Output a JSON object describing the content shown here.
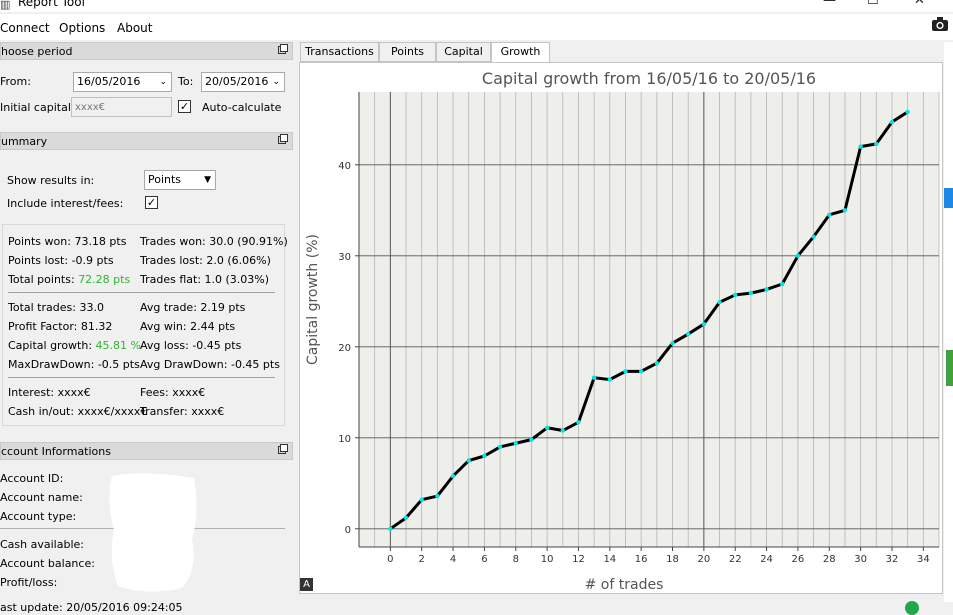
{
  "window": {
    "title": "Report Tool",
    "minimize_glyph": "—",
    "maximize_glyph": "☐",
    "close_glyph": "✕"
  },
  "menu": {
    "items": [
      "Connect",
      "Options",
      "About"
    ]
  },
  "period": {
    "header": "hoose period",
    "from_label": "From:",
    "from_value": "16/05/2016",
    "to_label": "To:",
    "to_value": "20/05/2016",
    "initial_capital_label": "Initial capital:",
    "initial_capital_placeholder": "xxxx€",
    "auto_calculate_label": "Auto-calculate",
    "auto_calculate_checked": true
  },
  "summary": {
    "header": "ummary",
    "show_results_label": "Show results in:",
    "show_results_value": "Points",
    "include_interest_label": "Include interest/fees:",
    "include_interest_checked": true,
    "left_stats": [
      {
        "label": "Points won: 73.18 pts",
        "value": ""
      },
      {
        "label": "Points lost: -0.9 pts",
        "value": ""
      },
      {
        "label": "Total points: ",
        "value": "72.28 pts"
      },
      {
        "label": "Total trades: 33.0",
        "value": ""
      },
      {
        "label": "Profit Factor: 81.32",
        "value": ""
      },
      {
        "label": "Capital growth: ",
        "value": "45.81 %"
      },
      {
        "label": "MaxDrawDown: -0.5 pts",
        "value": ""
      },
      {
        "label": "Interest: xxxx€",
        "value": ""
      },
      {
        "label": "Cash in/out: xxxx€/xxxx€",
        "value": ""
      }
    ],
    "right_stats": [
      "Trades won: 30.0 (90.91%)",
      "Trades lost: 2.0 (6.06%)",
      "Trades flat: 1.0 (3.03%)",
      "Avg trade: 2.19 pts",
      "Avg win: 2.44 pts",
      "Avg loss: -0.45 pts",
      "Avg DrawDown: -0.45 pts",
      "Fees: xxxx€",
      "Transfer: xxxx€"
    ]
  },
  "account": {
    "header": "ccount Informations",
    "labels": [
      "Account ID:",
      "Account name:",
      "Account type:",
      "Cash available:",
      "Account balance:",
      "Profit/loss:"
    ],
    "last_update": "ast update: 20/05/2016 09:24:05"
  },
  "tabs": [
    "Transactions",
    "Points",
    "Capital",
    "Growth"
  ],
  "active_tab": "Growth",
  "colors": {
    "positive": "#2fb52f",
    "line": "#000000",
    "marker": "#00e5e5",
    "plot_bg": "#eeeeea"
  },
  "chart_data": {
    "type": "line",
    "title": "Capital growth from 16/05/16 to 20/05/16",
    "xlabel": "# of trades",
    "ylabel": "Capital growth (%)",
    "xlim": [
      -2,
      35
    ],
    "ylim": [
      -2,
      48
    ],
    "xticks": [
      0,
      2,
      4,
      6,
      8,
      10,
      12,
      14,
      16,
      18,
      20,
      22,
      24,
      26,
      28,
      30,
      32,
      34
    ],
    "yticks": [
      0,
      10,
      20,
      30,
      40
    ],
    "grid": true,
    "x": [
      0,
      1,
      2,
      3,
      4,
      5,
      6,
      7,
      8,
      9,
      10,
      11,
      12,
      13,
      14,
      15,
      16,
      17,
      18,
      19,
      20,
      21,
      22,
      23,
      24,
      25,
      26,
      27,
      28,
      29,
      30,
      31,
      32,
      33
    ],
    "values": [
      0,
      1.2,
      3.2,
      3.6,
      5.8,
      7.5,
      8,
      9,
      9.4,
      9.8,
      11.1,
      10.8,
      11.7,
      16.6,
      16.4,
      17.3,
      17.3,
      18.2,
      20.4,
      21.4,
      22.5,
      24.9,
      25.7,
      25.9,
      26.3,
      26.9,
      30,
      32.1,
      34.5,
      35,
      42,
      42.3,
      44.7,
      45.81
    ]
  }
}
